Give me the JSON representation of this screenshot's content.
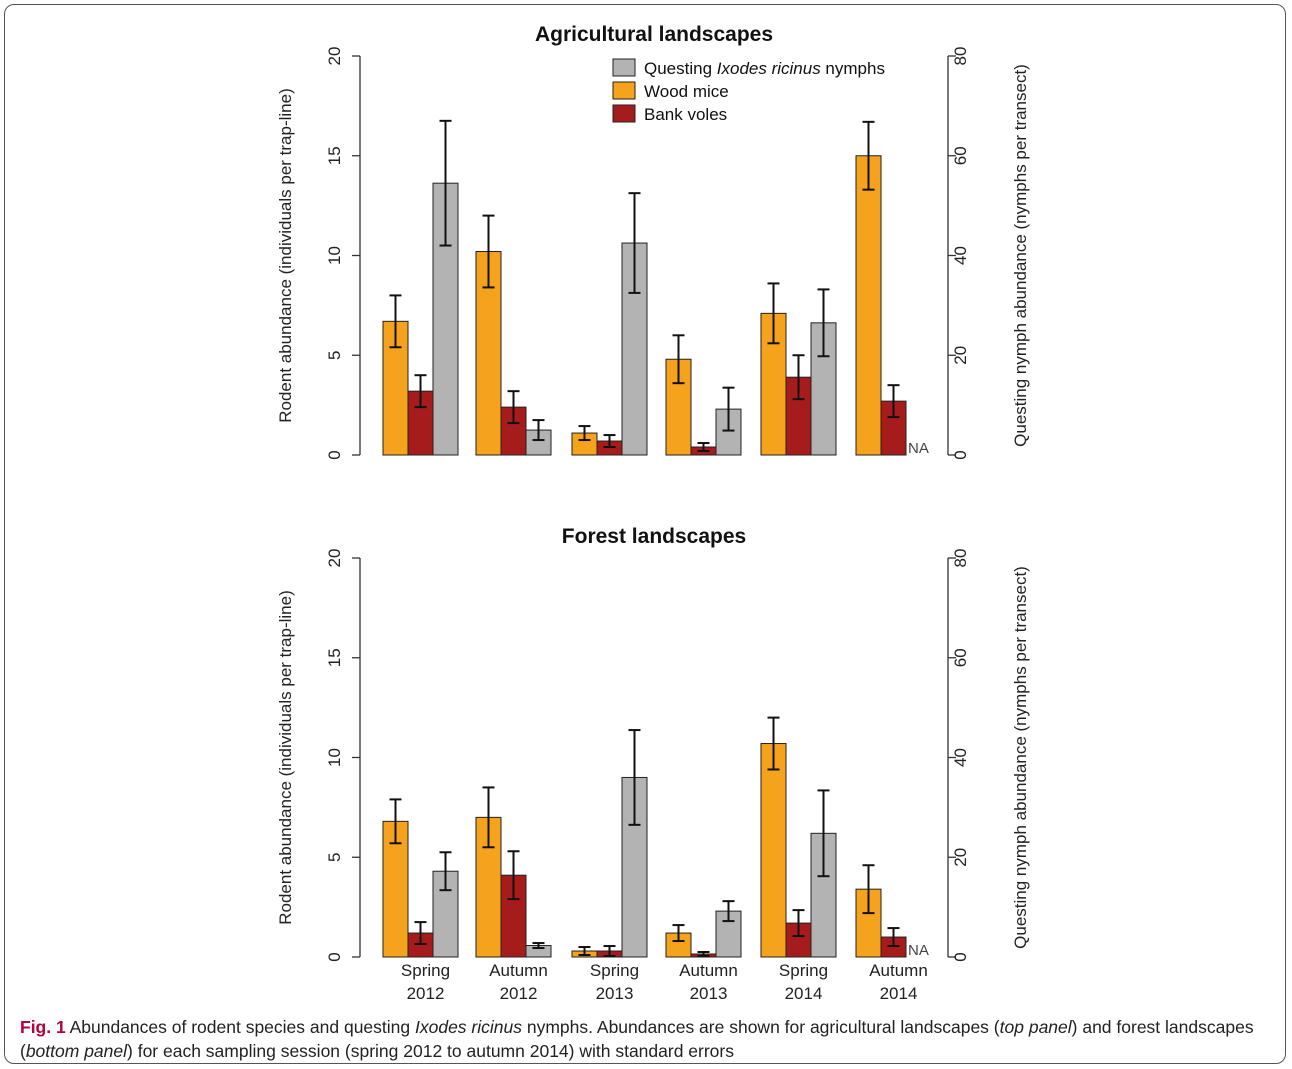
{
  "chart_data": [
    {
      "type": "bar",
      "title": "Agricultural landscapes",
      "ylabel": "Rodent abundance (individuals per trap-line)",
      "ylabel_right": "Questing nymph abundance (nymphs per transect)",
      "ylim": [
        0,
        20
      ],
      "ylim_right": [
        0,
        80
      ],
      "yticks": [
        0,
        5,
        10,
        15,
        20
      ],
      "yticks_right": [
        0,
        20,
        40,
        60,
        80
      ],
      "categories": [
        "Spring\n2012",
        "Autumn\n2012",
        "Spring\n2013",
        "Autumn\n2013",
        "Spring\n2014",
        "Autumn\n2014"
      ],
      "series": [
        {
          "name": "Wood mice",
          "axis": "left",
          "color": "#f5a31c",
          "values": [
            6.7,
            10.2,
            1.1,
            4.8,
            7.1,
            15.0
          ],
          "se": [
            1.3,
            1.8,
            0.35,
            1.2,
            1.5,
            1.7
          ]
        },
        {
          "name": "Bank voles",
          "axis": "left",
          "color": "#a61c1c",
          "values": [
            3.2,
            2.4,
            0.7,
            0.4,
            3.9,
            2.7
          ],
          "se": [
            0.8,
            0.8,
            0.3,
            0.2,
            1.1,
            0.8
          ]
        },
        {
          "name": "Questing Ixodes ricinus nymphs",
          "axis": "right",
          "color": "#b3b3b3",
          "values": [
            54.5,
            5.0,
            42.5,
            9.2,
            26.5,
            null
          ],
          "se": [
            12.5,
            2.0,
            10.0,
            4.3,
            6.7,
            null
          ]
        }
      ],
      "annotations": [
        "NA"
      ]
    },
    {
      "type": "bar",
      "title": "Forest landscapes",
      "ylabel": "Rodent abundance (individuals per trap-line)",
      "ylabel_right": "Questing nymph abundance (nymphs per transect)",
      "ylim": [
        0,
        20
      ],
      "ylim_right": [
        0,
        80
      ],
      "yticks": [
        0,
        5,
        10,
        15,
        20
      ],
      "yticks_right": [
        0,
        20,
        40,
        60,
        80
      ],
      "categories": [
        "Spring\n2012",
        "Autumn\n2012",
        "Spring\n2013",
        "Autumn\n2013",
        "Spring\n2014",
        "Autumn\n2014"
      ],
      "series": [
        {
          "name": "Wood mice",
          "axis": "left",
          "color": "#f5a31c",
          "values": [
            6.8,
            7.0,
            0.3,
            1.2,
            10.7,
            3.4
          ],
          "se": [
            1.1,
            1.5,
            0.2,
            0.4,
            1.3,
            1.2
          ]
        },
        {
          "name": "Bank voles",
          "axis": "left",
          "color": "#a61c1c",
          "values": [
            1.2,
            4.1,
            0.3,
            0.15,
            1.7,
            1.0
          ],
          "se": [
            0.55,
            1.2,
            0.25,
            0.1,
            0.65,
            0.45
          ]
        },
        {
          "name": "Questing Ixodes ricinus nymphs",
          "axis": "right",
          "color": "#b3b3b3",
          "values": [
            17.2,
            2.3,
            36.0,
            9.2,
            24.8,
            null
          ],
          "se": [
            3.8,
            0.5,
            9.5,
            2.0,
            8.6,
            null
          ]
        }
      ],
      "annotations": [
        "NA"
      ]
    }
  ],
  "legend": {
    "nymphs_prefix": "Questing ",
    "nymphs_italic": "Ixodes ricinus",
    "nymphs_suffix": " nymphs",
    "wood_mice": "Wood mice",
    "bank_voles": "Bank voles"
  },
  "caption": {
    "label": "Fig. 1",
    "text_1": " Abundances of rodent species and questing ",
    "italic_1": "Ixodes ricinus",
    "text_2": " nymphs. Abundances are shown for agricultural landscapes (",
    "italic_2": "top panel",
    "text_3": ") and forest landscapes (",
    "italic_3": "bottom panel",
    "text_4": ") for each sampling session (spring 2012 to autumn 2014) with standard errors"
  },
  "na_label": "NA"
}
